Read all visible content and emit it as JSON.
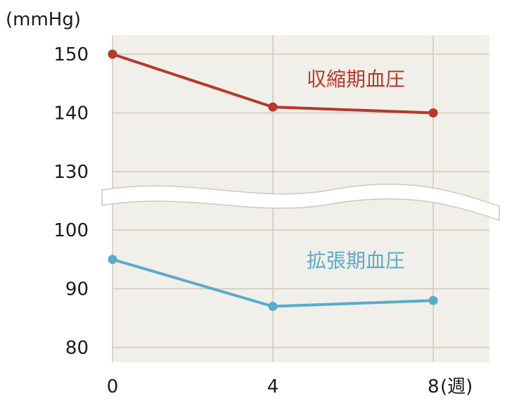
{
  "chart_data": {
    "type": "line",
    "y_unit": "(mmHg)",
    "x": [
      0,
      4,
      8
    ],
    "x_tick_labels": [
      "0",
      "4",
      "8"
    ],
    "x_unit": "(週)",
    "y_ticks": [
      150,
      140,
      130,
      100,
      90,
      80
    ],
    "y_break": [
      130,
      100
    ],
    "grid": true,
    "series": [
      {
        "name": "収縮期血圧",
        "values": [
          150,
          141,
          140
        ],
        "color": "#b5392b"
      },
      {
        "name": "拡張期血圧",
        "values": [
          95,
          87,
          88
        ],
        "color": "#5aabcb"
      }
    ]
  },
  "colors": {
    "plot_background": "#f1efe9",
    "grid": "#cfc8bd",
    "break_band": "#ffffff"
  }
}
